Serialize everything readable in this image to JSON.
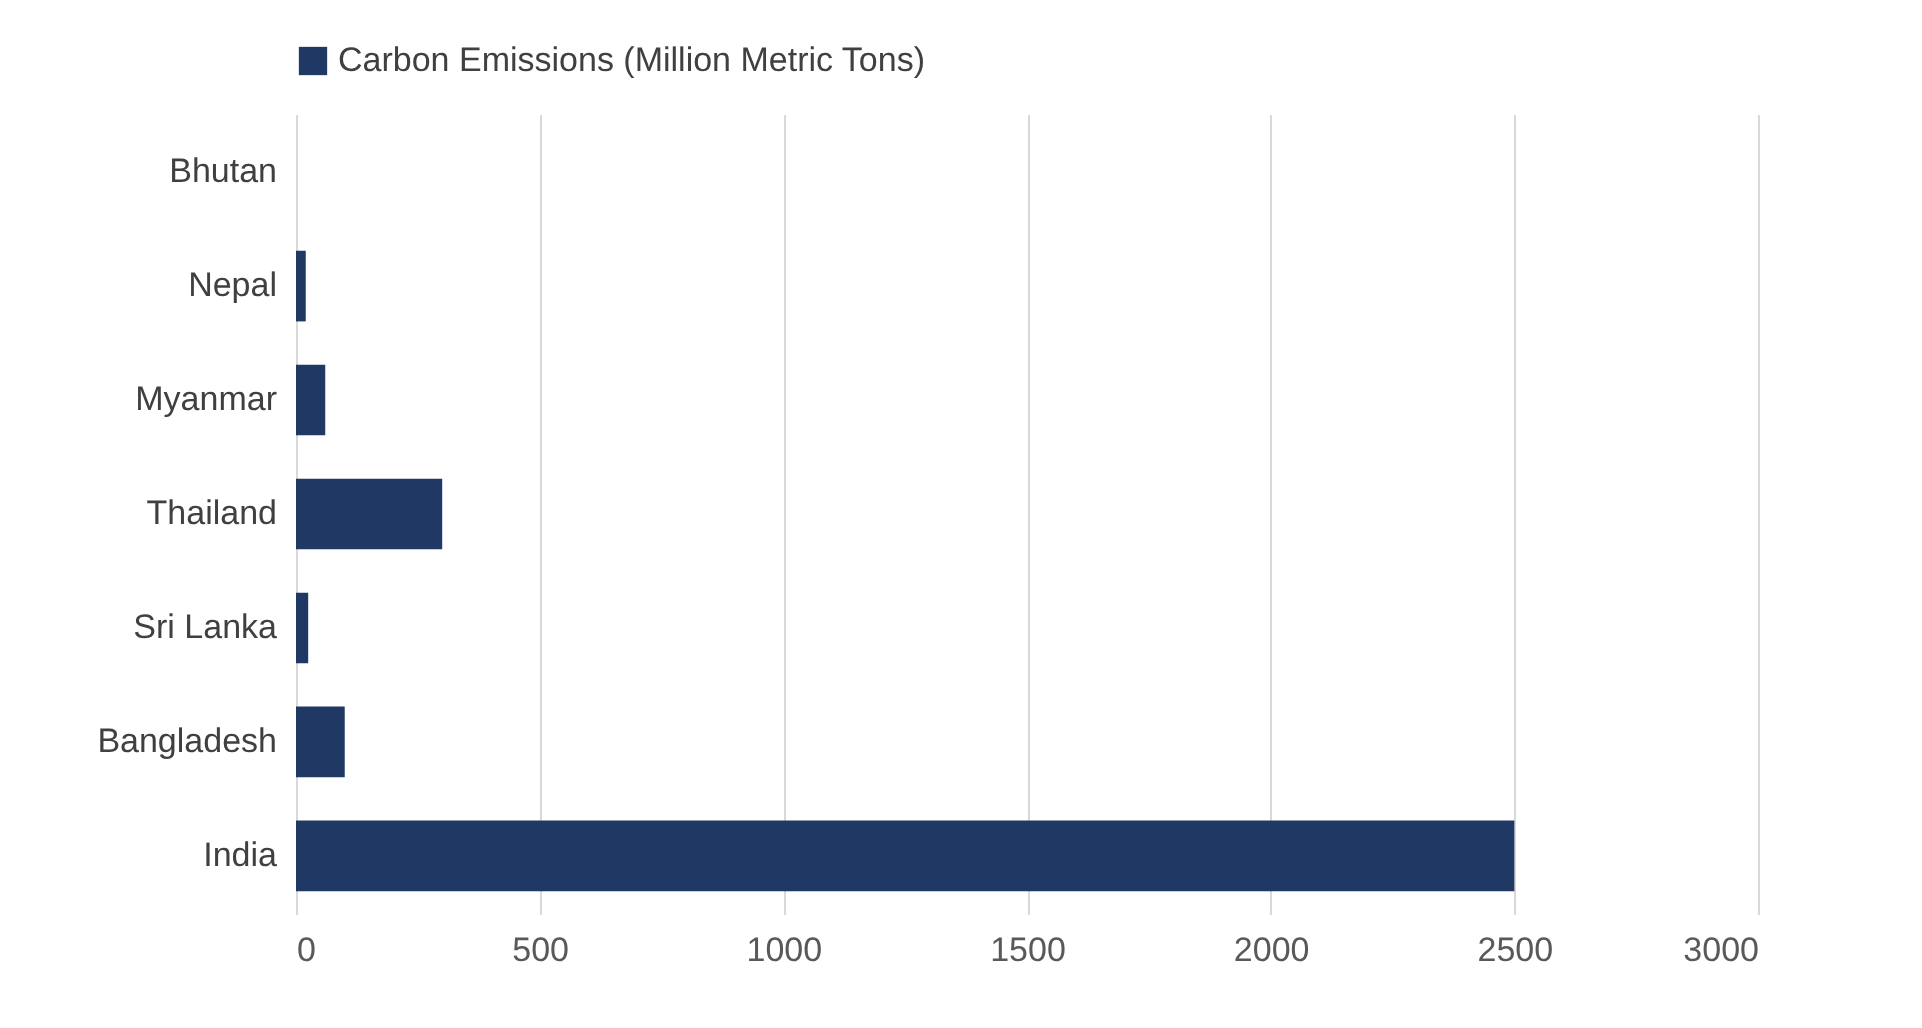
{
  "chart_data": {
    "type": "bar",
    "orientation": "horizontal",
    "categories": [
      "Bhutan",
      "Nepal",
      "Myanmar",
      "Thailand",
      "Sri Lanka",
      "Bangladesh",
      "India"
    ],
    "series": [
      {
        "name": "Carbon Emissions (Million Metric Tons)",
        "color": "#203864",
        "values": [
          null,
          20,
          60,
          300,
          25,
          100,
          2500
        ]
      }
    ],
    "xlim": [
      0,
      3000
    ],
    "xticks": [
      0,
      500,
      1000,
      1500,
      2000,
      2500,
      3000
    ],
    "grid": "x",
    "legend": "top"
  }
}
